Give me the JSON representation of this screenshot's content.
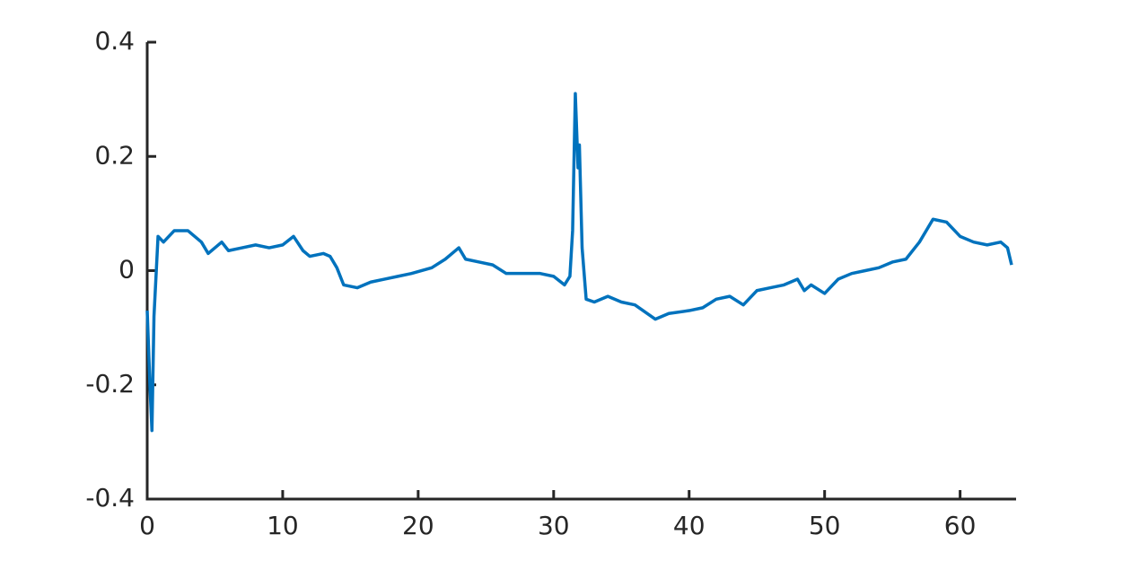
{
  "chart_data": {
    "type": "line",
    "x": [
      0,
      0.2,
      0.35,
      0.5,
      0.8,
      1.2,
      2,
      3,
      4,
      4.5,
      5.5,
      6,
      7,
      8,
      9,
      10,
      10.8,
      11.5,
      12,
      13,
      13.5,
      14,
      14.5,
      15.5,
      16.5,
      17.5,
      18.5,
      19.5,
      21,
      22,
      23,
      23.5,
      24.5,
      25.5,
      26.5,
      28,
      29,
      30,
      30.8,
      31.2,
      31.4,
      31.6,
      31.8,
      31.9,
      32.1,
      32.4,
      33,
      34,
      35,
      36,
      37.5,
      38.5,
      40,
      41,
      42,
      43,
      44,
      45,
      46,
      47,
      48,
      48.5,
      49,
      50,
      51,
      52,
      53,
      54,
      55,
      56,
      57,
      58,
      59,
      60,
      61,
      62,
      63,
      63.5,
      63.8
    ],
    "series": [
      {
        "color": "#0072bd",
        "values": [
          -0.07,
          -0.2,
          -0.28,
          -0.08,
          0.06,
          0.05,
          0.07,
          0.07,
          0.05,
          0.03,
          0.05,
          0.035,
          0.04,
          0.045,
          0.04,
          0.045,
          0.06,
          0.035,
          0.025,
          0.03,
          0.025,
          0.005,
          -0.025,
          -0.03,
          -0.02,
          -0.015,
          -0.01,
          -0.005,
          0.005,
          0.02,
          0.04,
          0.02,
          0.015,
          0.01,
          -0.005,
          -0.005,
          -0.005,
          -0.01,
          -0.025,
          -0.01,
          0.07,
          0.31,
          0.18,
          0.22,
          0.04,
          -0.05,
          -0.055,
          -0.045,
          -0.055,
          -0.06,
          -0.085,
          -0.075,
          -0.07,
          -0.065,
          -0.05,
          -0.045,
          -0.06,
          -0.035,
          -0.03,
          -0.025,
          -0.015,
          -0.035,
          -0.025,
          -0.04,
          -0.015,
          -0.005,
          0,
          0.005,
          0.015,
          0.02,
          0.05,
          0.09,
          0.085,
          0.06,
          0.05,
          0.045,
          0.05,
          0.04,
          0.01
        ]
      }
    ],
    "xlim": [
      0,
      64
    ],
    "xticks": [
      0,
      10,
      20,
      30,
      40,
      50,
      60
    ],
    "ylim": [
      -0.4,
      0.4
    ],
    "yticks": [
      -0.4,
      -0.2,
      0,
      0.2,
      0.4
    ]
  }
}
